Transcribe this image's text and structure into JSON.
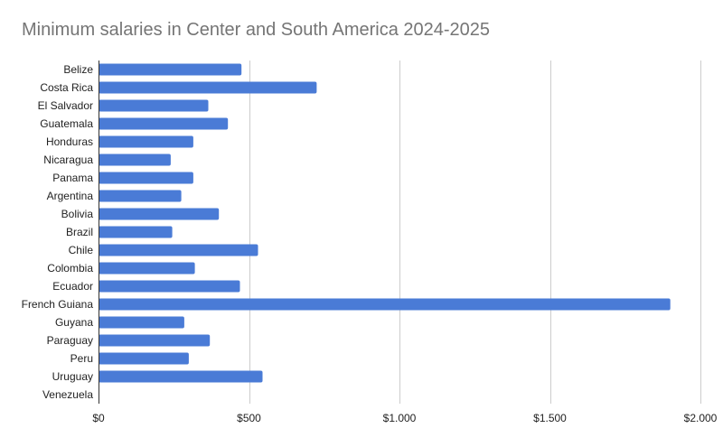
{
  "chart_data": {
    "type": "bar",
    "orientation": "horizontal",
    "title": "Minimum salaries in Center and South America 2024-2025",
    "xlabel": "",
    "ylabel": "",
    "categories": [
      "Belize",
      "Costa Rica",
      "El Salvador",
      "Guatemala",
      "Honduras",
      "Nicaragua",
      "Panama",
      "Argentina",
      "Bolivia",
      "Brazil",
      "Chile",
      "Colombia",
      "Ecuador",
      "French Guiana",
      "Guyana",
      "Paraguay",
      "Peru",
      "Uruguay",
      "Venezuela"
    ],
    "values": [
      475,
      725,
      365,
      430,
      315,
      240,
      315,
      275,
      400,
      245,
      530,
      320,
      470,
      1900,
      285,
      370,
      300,
      545,
      0
    ],
    "xlim": [
      0,
      2000
    ],
    "xticks": [
      0,
      500,
      1000,
      1500,
      2000
    ],
    "xtick_labels": [
      "$0",
      "$500",
      "$1.000",
      "$1.500",
      "$2.000"
    ],
    "bar_color": "#4a7bd6",
    "grid_color": "#cccccc",
    "grid": true,
    "legend": "none"
  }
}
